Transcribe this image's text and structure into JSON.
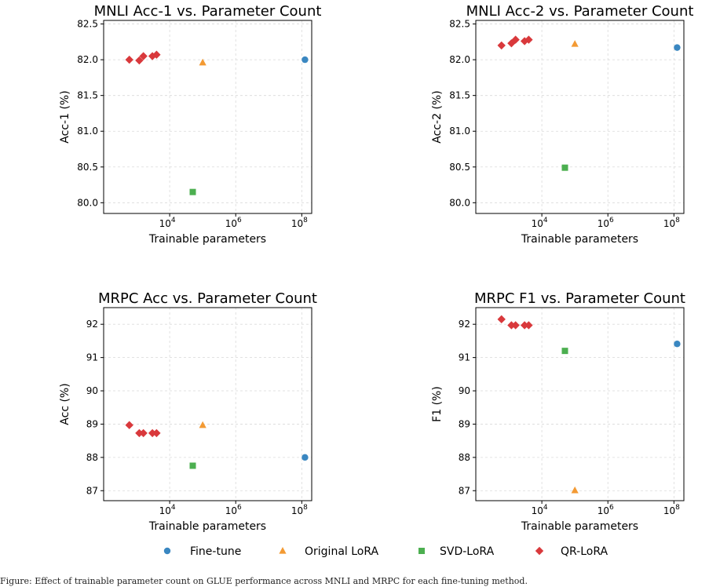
{
  "legend": {
    "position": "bottom-center",
    "entries": [
      {
        "name": "Fine-tune",
        "marker": "circle",
        "color": "#3a87c1"
      },
      {
        "name": "Original LoRA",
        "marker": "triangle",
        "color": "#f39a33"
      },
      {
        "name": "SVD-LoRA",
        "marker": "square",
        "color": "#4caf50"
      },
      {
        "name": "QR-LoRA",
        "marker": "diamond",
        "color": "#d9393c"
      }
    ]
  },
  "caption": {
    "text": "Figure: Effect of trainable parameter count on GLUE performance across MNLI and MRPC for each fine-tuning method."
  },
  "chart_data": [
    {
      "type": "scatter",
      "title": "MNLI Acc-1 vs. Parameter Count",
      "xlabel": "Trainable parameters",
      "ylabel": "Acc-1 (%)",
      "xscale": "log",
      "xlim": [
        100,
        200000000
      ],
      "ylim": [
        79.85,
        82.55
      ],
      "xticks": [
        {
          "value": 10000,
          "base": "10",
          "exp": "4"
        },
        {
          "value": 1000000,
          "base": "10",
          "exp": "6"
        },
        {
          "value": 100000000,
          "base": "10",
          "exp": "8"
        }
      ],
      "yticks": [
        "80.0",
        "80.5",
        "81.0",
        "81.5",
        "82.0",
        "82.5"
      ],
      "grid": true,
      "series": [
        {
          "name": "Fine-tune",
          "points": [
            {
              "x": 125000000,
              "y": 82.0
            }
          ]
        },
        {
          "name": "Original LoRA",
          "points": [
            {
              "x": 100000,
              "y": 81.96
            }
          ]
        },
        {
          "name": "SVD-LoRA",
          "points": [
            {
              "x": 50000,
              "y": 80.15
            }
          ]
        },
        {
          "name": "QR-LoRA",
          "points": [
            {
              "x": 600,
              "y": 82.0
            },
            {
              "x": 1200,
              "y": 81.99
            },
            {
              "x": 1600,
              "y": 82.05
            },
            {
              "x": 3000,
              "y": 82.05
            },
            {
              "x": 4000,
              "y": 82.07
            }
          ]
        }
      ]
    },
    {
      "type": "scatter",
      "title": "MNLI Acc-2 vs. Parameter Count",
      "xlabel": "Trainable parameters",
      "ylabel": "Acc-2 (%)",
      "xscale": "log",
      "xlim": [
        100,
        200000000
      ],
      "ylim": [
        79.85,
        82.55
      ],
      "xticks": [
        {
          "value": 10000,
          "base": "10",
          "exp": "4"
        },
        {
          "value": 1000000,
          "base": "10",
          "exp": "6"
        },
        {
          "value": 100000000,
          "base": "10",
          "exp": "8"
        }
      ],
      "yticks": [
        "80.0",
        "80.5",
        "81.0",
        "81.5",
        "82.0",
        "82.5"
      ],
      "grid": true,
      "series": [
        {
          "name": "Fine-tune",
          "points": [
            {
              "x": 125000000,
              "y": 82.17
            }
          ]
        },
        {
          "name": "Original LoRA",
          "points": [
            {
              "x": 100000,
              "y": 82.22
            }
          ]
        },
        {
          "name": "SVD-LoRA",
          "points": [
            {
              "x": 50000,
              "y": 80.49
            }
          ]
        },
        {
          "name": "QR-LoRA",
          "points": [
            {
              "x": 600,
              "y": 82.2
            },
            {
              "x": 1200,
              "y": 82.23
            },
            {
              "x": 1600,
              "y": 82.28
            },
            {
              "x": 3000,
              "y": 82.26
            },
            {
              "x": 4000,
              "y": 82.28
            }
          ]
        }
      ]
    },
    {
      "type": "scatter",
      "title": "MRPC Acc vs. Parameter Count",
      "xlabel": "Trainable parameters",
      "ylabel": "Acc (%)",
      "xscale": "log",
      "xlim": [
        100,
        200000000
      ],
      "ylim": [
        86.7,
        92.5
      ],
      "xticks": [
        {
          "value": 10000,
          "base": "10",
          "exp": "4"
        },
        {
          "value": 1000000,
          "base": "10",
          "exp": "6"
        },
        {
          "value": 100000000,
          "base": "10",
          "exp": "8"
        }
      ],
      "yticks": [
        "87",
        "88",
        "89",
        "90",
        "91",
        "92"
      ],
      "grid": true,
      "series": [
        {
          "name": "Fine-tune",
          "points": [
            {
              "x": 125000000,
              "y": 88.0
            }
          ]
        },
        {
          "name": "Original LoRA",
          "points": [
            {
              "x": 100000,
              "y": 88.97
            }
          ]
        },
        {
          "name": "SVD-LoRA",
          "points": [
            {
              "x": 50000,
              "y": 87.75
            }
          ]
        },
        {
          "name": "QR-LoRA",
          "points": [
            {
              "x": 600,
              "y": 88.97
            },
            {
              "x": 1200,
              "y": 88.73
            },
            {
              "x": 1600,
              "y": 88.73
            },
            {
              "x": 3000,
              "y": 88.73
            },
            {
              "x": 4000,
              "y": 88.73
            }
          ]
        }
      ]
    },
    {
      "type": "scatter",
      "title": "MRPC F1 vs. Parameter Count",
      "xlabel": "Trainable parameters",
      "ylabel": "F1 (%)",
      "xscale": "log",
      "xlim": [
        100,
        200000000
      ],
      "ylim": [
        86.7,
        92.5
      ],
      "xticks": [
        {
          "value": 10000,
          "base": "10",
          "exp": "4"
        },
        {
          "value": 1000000,
          "base": "10",
          "exp": "6"
        },
        {
          "value": 100000000,
          "base": "10",
          "exp": "8"
        }
      ],
      "yticks": [
        "87",
        "88",
        "89",
        "90",
        "91",
        "92"
      ],
      "grid": true,
      "series": [
        {
          "name": "Fine-tune",
          "points": [
            {
              "x": 125000000,
              "y": 91.41
            }
          ]
        },
        {
          "name": "Original LoRA",
          "points": [
            {
              "x": 100000,
              "y": 87.01
            }
          ]
        },
        {
          "name": "SVD-LoRA",
          "points": [
            {
              "x": 50000,
              "y": 91.2
            }
          ]
        },
        {
          "name": "QR-LoRA",
          "points": [
            {
              "x": 600,
              "y": 92.15
            },
            {
              "x": 1200,
              "y": 91.97
            },
            {
              "x": 1600,
              "y": 91.97
            },
            {
              "x": 3000,
              "y": 91.97
            },
            {
              "x": 4000,
              "y": 91.97
            }
          ]
        }
      ]
    }
  ]
}
